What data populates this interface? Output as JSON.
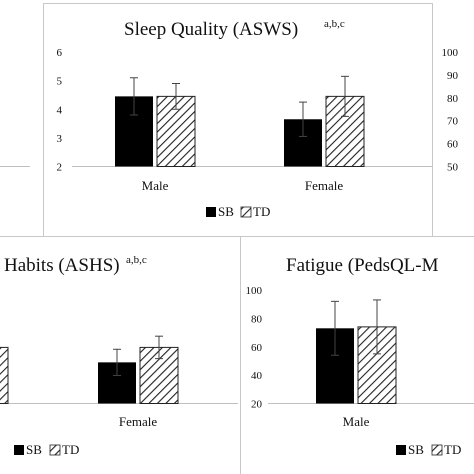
{
  "chart_data": [
    {
      "id": "panel_left_top",
      "type": "bar",
      "title": "",
      "title_sup": "",
      "categories": [],
      "series": [],
      "ylim": [
        50,
        100
      ],
      "yticks": [],
      "legend": []
    },
    {
      "id": "panel_sleep_quality",
      "type": "bar",
      "title": "Sleep Quality (ASWS)",
      "title_sup": "a,b,c",
      "categories": [
        "Male",
        "Female"
      ],
      "series": [
        {
          "name": "SB",
          "values": [
            4.45,
            3.65
          ],
          "errors": [
            0.65,
            0.6
          ],
          "pattern": "solid"
        },
        {
          "name": "TD",
          "values": [
            4.45,
            4.45
          ],
          "errors": [
            0.45,
            0.7
          ],
          "pattern": "hatch"
        }
      ],
      "ylim": [
        2,
        6
      ],
      "yticks": [
        "2",
        "3",
        "4",
        "5",
        "6"
      ],
      "legend": [
        "SB",
        "TD"
      ]
    },
    {
      "id": "panel_right_top",
      "type": "bar",
      "title": "",
      "title_sup": "",
      "categories": [],
      "series": [],
      "ylim": [
        50,
        100
      ],
      "yticks": [
        "50",
        "60",
        "70",
        "80",
        "90",
        "100"
      ],
      "legend": []
    },
    {
      "id": "panel_sleep_habits",
      "type": "bar",
      "title": "Habits (ASHS)",
      "title_sup": "a,b,c",
      "categories": [
        "Female"
      ],
      "series": [
        {
          "name": "SB",
          "values": [
            3.6
          ],
          "errors": [
            0.35
          ],
          "pattern": "solid"
        },
        {
          "name": "TD",
          "values": [
            4.0
          ],
          "errors": [
            0.3
          ],
          "pattern": "hatch"
        }
      ],
      "ylim": [
        2.5,
        5.0
      ],
      "yticks": [],
      "legend": [
        "SB",
        "TD"
      ]
    },
    {
      "id": "panel_fatigue",
      "type": "bar",
      "title": "Fatigue (PedsQL-M",
      "title_sup": "",
      "categories": [
        "Male"
      ],
      "series": [
        {
          "name": "SB",
          "values": [
            73
          ],
          "errors": [
            19
          ],
          "pattern": "solid"
        },
        {
          "name": "TD",
          "values": [
            74
          ],
          "errors": [
            19
          ],
          "pattern": "hatch"
        }
      ],
      "ylim": [
        20,
        100
      ],
      "yticks": [
        "20",
        "40",
        "60",
        "80",
        "100"
      ],
      "legend": [
        "SB",
        "TD"
      ]
    }
  ]
}
